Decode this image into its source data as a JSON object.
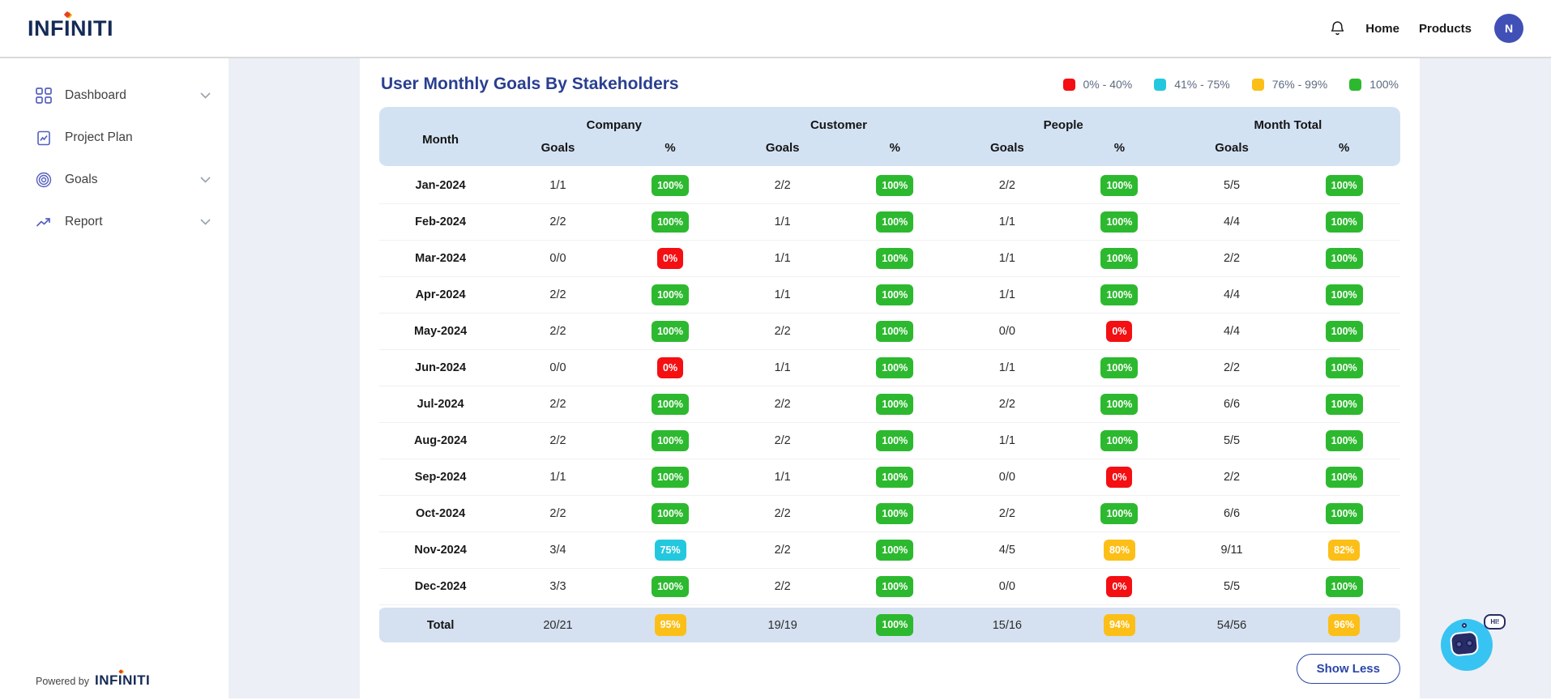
{
  "brand": {
    "prefix": "INF",
    "dotted": "I",
    "suffix": "NITI"
  },
  "navbar": {
    "links": [
      {
        "label": "Home"
      },
      {
        "label": "Products"
      }
    ],
    "avatar": "N"
  },
  "sidebar": {
    "items": [
      {
        "label": "Dashboard",
        "icon": "grid-icon",
        "chevron": true
      },
      {
        "label": "Project Plan",
        "icon": "clipboard-icon",
        "chevron": false
      },
      {
        "label": "Goals",
        "icon": "target-icon",
        "chevron": true
      },
      {
        "label": "Report",
        "icon": "trend-icon",
        "chevron": true
      }
    ],
    "powered_by": "Powered by"
  },
  "page": {
    "title": "User Monthly Goals By Stakeholders",
    "show_less": "Show Less",
    "chat_bubble": "HI!"
  },
  "legend": [
    {
      "label": "0% - 40%",
      "color": "#f40f12"
    },
    {
      "label": "41% - 75%",
      "color": "#24c8de"
    },
    {
      "label": "76% - 99%",
      "color": "#fcbf18"
    },
    {
      "label": "100%",
      "color": "#2db92f"
    }
  ],
  "colors": {
    "red": "#f40f12",
    "cyan": "#24c8de",
    "yellow": "#fcbf18",
    "green": "#2db92f",
    "header_bg": "#d3e2f3",
    "total_bg": "#d5e1f1",
    "title": "#2a3f90",
    "logo_navy": "#152a56",
    "avatar_bg": "#4150b7"
  },
  "table": {
    "groups": [
      "Month",
      "Company",
      "Customer",
      "People",
      "Month Total"
    ],
    "subheaders": [
      "Goals",
      "%"
    ],
    "rows": [
      {
        "month": "Jan-2024",
        "cells": [
          {
            "goals": "1/1",
            "pct": "100%",
            "level": "green"
          },
          {
            "goals": "2/2",
            "pct": "100%",
            "level": "green"
          },
          {
            "goals": "2/2",
            "pct": "100%",
            "level": "green"
          },
          {
            "goals": "5/5",
            "pct": "100%",
            "level": "green"
          }
        ]
      },
      {
        "month": "Feb-2024",
        "cells": [
          {
            "goals": "2/2",
            "pct": "100%",
            "level": "green"
          },
          {
            "goals": "1/1",
            "pct": "100%",
            "level": "green"
          },
          {
            "goals": "1/1",
            "pct": "100%",
            "level": "green"
          },
          {
            "goals": "4/4",
            "pct": "100%",
            "level": "green"
          }
        ]
      },
      {
        "month": "Mar-2024",
        "cells": [
          {
            "goals": "0/0",
            "pct": "0%",
            "level": "red"
          },
          {
            "goals": "1/1",
            "pct": "100%",
            "level": "green"
          },
          {
            "goals": "1/1",
            "pct": "100%",
            "level": "green"
          },
          {
            "goals": "2/2",
            "pct": "100%",
            "level": "green"
          }
        ]
      },
      {
        "month": "Apr-2024",
        "cells": [
          {
            "goals": "2/2",
            "pct": "100%",
            "level": "green"
          },
          {
            "goals": "1/1",
            "pct": "100%",
            "level": "green"
          },
          {
            "goals": "1/1",
            "pct": "100%",
            "level": "green"
          },
          {
            "goals": "4/4",
            "pct": "100%",
            "level": "green"
          }
        ]
      },
      {
        "month": "May-2024",
        "cells": [
          {
            "goals": "2/2",
            "pct": "100%",
            "level": "green"
          },
          {
            "goals": "2/2",
            "pct": "100%",
            "level": "green"
          },
          {
            "goals": "0/0",
            "pct": "0%",
            "level": "red"
          },
          {
            "goals": "4/4",
            "pct": "100%",
            "level": "green"
          }
        ]
      },
      {
        "month": "Jun-2024",
        "cells": [
          {
            "goals": "0/0",
            "pct": "0%",
            "level": "red"
          },
          {
            "goals": "1/1",
            "pct": "100%",
            "level": "green"
          },
          {
            "goals": "1/1",
            "pct": "100%",
            "level": "green"
          },
          {
            "goals": "2/2",
            "pct": "100%",
            "level": "green"
          }
        ]
      },
      {
        "month": "Jul-2024",
        "cells": [
          {
            "goals": "2/2",
            "pct": "100%",
            "level": "green"
          },
          {
            "goals": "2/2",
            "pct": "100%",
            "level": "green"
          },
          {
            "goals": "2/2",
            "pct": "100%",
            "level": "green"
          },
          {
            "goals": "6/6",
            "pct": "100%",
            "level": "green"
          }
        ]
      },
      {
        "month": "Aug-2024",
        "cells": [
          {
            "goals": "2/2",
            "pct": "100%",
            "level": "green"
          },
          {
            "goals": "2/2",
            "pct": "100%",
            "level": "green"
          },
          {
            "goals": "1/1",
            "pct": "100%",
            "level": "green"
          },
          {
            "goals": "5/5",
            "pct": "100%",
            "level": "green"
          }
        ]
      },
      {
        "month": "Sep-2024",
        "cells": [
          {
            "goals": "1/1",
            "pct": "100%",
            "level": "green"
          },
          {
            "goals": "1/1",
            "pct": "100%",
            "level": "green"
          },
          {
            "goals": "0/0",
            "pct": "0%",
            "level": "red"
          },
          {
            "goals": "2/2",
            "pct": "100%",
            "level": "green"
          }
        ]
      },
      {
        "month": "Oct-2024",
        "cells": [
          {
            "goals": "2/2",
            "pct": "100%",
            "level": "green"
          },
          {
            "goals": "2/2",
            "pct": "100%",
            "level": "green"
          },
          {
            "goals": "2/2",
            "pct": "100%",
            "level": "green"
          },
          {
            "goals": "6/6",
            "pct": "100%",
            "level": "green"
          }
        ]
      },
      {
        "month": "Nov-2024",
        "cells": [
          {
            "goals": "3/4",
            "pct": "75%",
            "level": "cyan"
          },
          {
            "goals": "2/2",
            "pct": "100%",
            "level": "green"
          },
          {
            "goals": "4/5",
            "pct": "80%",
            "level": "yellow"
          },
          {
            "goals": "9/11",
            "pct": "82%",
            "level": "yellow"
          }
        ]
      },
      {
        "month": "Dec-2024",
        "cells": [
          {
            "goals": "3/3",
            "pct": "100%",
            "level": "green"
          },
          {
            "goals": "2/2",
            "pct": "100%",
            "level": "green"
          },
          {
            "goals": "0/0",
            "pct": "0%",
            "level": "red"
          },
          {
            "goals": "5/5",
            "pct": "100%",
            "level": "green"
          }
        ]
      }
    ],
    "total": {
      "month": "Total",
      "cells": [
        {
          "goals": "20/21",
          "pct": "95%",
          "level": "yellow"
        },
        {
          "goals": "19/19",
          "pct": "100%",
          "level": "green"
        },
        {
          "goals": "15/16",
          "pct": "94%",
          "level": "yellow"
        },
        {
          "goals": "54/56",
          "pct": "96%",
          "level": "yellow"
        }
      ]
    }
  }
}
